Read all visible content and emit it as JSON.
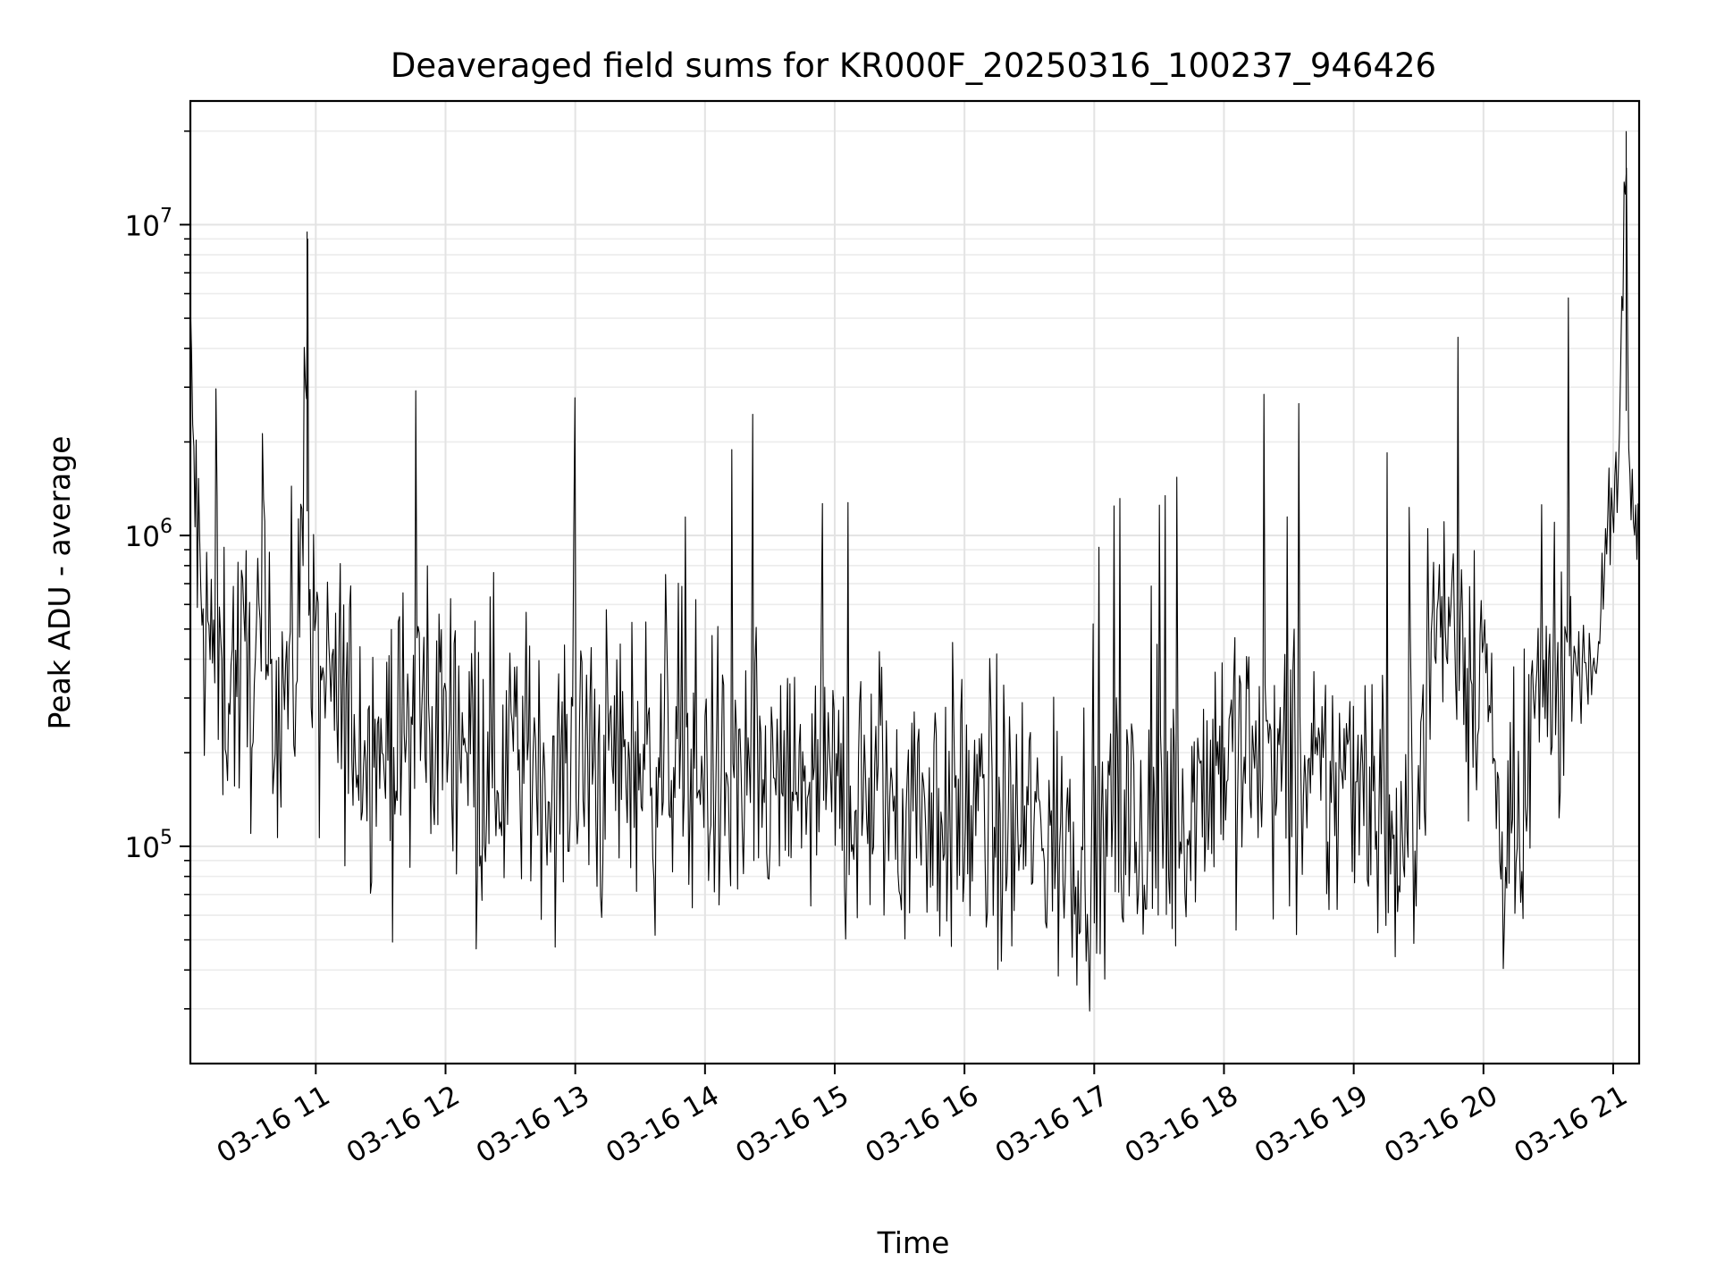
{
  "chart_data": {
    "type": "line",
    "title": "Deaveraged field sums for KR000F_20250316_100237_946426",
    "xlabel": "Time",
    "ylabel": "Peak ADU - average",
    "yscale": "log",
    "ylim": [
      20000,
      25000000
    ],
    "xlim": [
      "2025-03-16 10:02",
      "2025-03-16 21:12"
    ],
    "grid": true,
    "legend": "none",
    "x_tick_labels": [
      "03-16 11",
      "03-16 12",
      "03-16 13",
      "03-16 14",
      "03-16 15",
      "03-16 16",
      "03-16 17",
      "03-16 18",
      "03-16 19",
      "03-16 20",
      "03-16 21"
    ],
    "y_ticks": [
      {
        "base": "10",
        "exp": "5",
        "value": 100000
      },
      {
        "base": "10",
        "exp": "6",
        "value": 1000000
      },
      {
        "base": "10",
        "exp": "7",
        "value": 10000000
      }
    ],
    "line_color": "#000000",
    "series": [
      {
        "x": [
          "2025-03-16 10:02",
          "2025-03-16 10:07",
          "2025-03-16 10:12",
          "2025-03-16 10:17",
          "2025-03-16 10:22",
          "2025-03-16 10:27",
          "2025-03-16 10:32",
          "2025-03-16 10:37",
          "2025-03-16 10:42",
          "2025-03-16 10:47",
          "2025-03-16 10:52",
          "2025-03-16 10:56",
          "2025-03-16 10:57",
          "2025-03-16 11:02",
          "2025-03-16 11:07",
          "2025-03-16 11:12",
          "2025-03-16 11:17",
          "2025-03-16 11:22",
          "2025-03-16 11:27",
          "2025-03-16 11:32",
          "2025-03-16 11:37",
          "2025-03-16 11:42",
          "2025-03-16 11:47",
          "2025-03-16 11:52",
          "2025-03-16 11:57",
          "2025-03-16 12:02",
          "2025-03-16 12:07",
          "2025-03-16 12:12",
          "2025-03-16 12:17",
          "2025-03-16 12:22",
          "2025-03-16 12:27",
          "2025-03-16 12:32",
          "2025-03-16 12:37",
          "2025-03-16 12:42",
          "2025-03-16 12:47",
          "2025-03-16 12:52",
          "2025-03-16 12:57",
          "2025-03-16 13:02",
          "2025-03-16 13:07",
          "2025-03-16 13:12",
          "2025-03-16 13:17",
          "2025-03-16 13:22",
          "2025-03-16 13:27",
          "2025-03-16 13:32",
          "2025-03-16 13:37",
          "2025-03-16 13:42",
          "2025-03-16 13:47",
          "2025-03-16 13:52",
          "2025-03-16 13:57",
          "2025-03-16 14:02",
          "2025-03-16 14:07",
          "2025-03-16 14:12",
          "2025-03-16 14:17",
          "2025-03-16 14:22",
          "2025-03-16 14:27",
          "2025-03-16 14:32",
          "2025-03-16 14:37",
          "2025-03-16 14:42",
          "2025-03-16 14:47",
          "2025-03-16 14:52",
          "2025-03-16 14:57",
          "2025-03-16 15:02",
          "2025-03-16 15:07",
          "2025-03-16 15:12",
          "2025-03-16 15:17",
          "2025-03-16 15:22",
          "2025-03-16 15:27",
          "2025-03-16 15:32",
          "2025-03-16 15:37",
          "2025-03-16 15:42",
          "2025-03-16 15:47",
          "2025-03-16 15:52",
          "2025-03-16 15:57",
          "2025-03-16 16:02",
          "2025-03-16 16:07",
          "2025-03-16 16:12",
          "2025-03-16 16:17",
          "2025-03-16 16:22",
          "2025-03-16 16:27",
          "2025-03-16 16:32",
          "2025-03-16 16:37",
          "2025-03-16 16:42",
          "2025-03-16 16:47",
          "2025-03-16 16:52",
          "2025-03-16 16:57",
          "2025-03-16 17:02",
          "2025-03-16 17:07",
          "2025-03-16 17:12",
          "2025-03-16 17:17",
          "2025-03-16 17:22",
          "2025-03-16 17:27",
          "2025-03-16 17:32",
          "2025-03-16 17:37",
          "2025-03-16 17:42",
          "2025-03-16 17:47",
          "2025-03-16 17:52",
          "2025-03-16 17:57",
          "2025-03-16 18:02",
          "2025-03-16 18:07",
          "2025-03-16 18:12",
          "2025-03-16 18:17",
          "2025-03-16 18:22",
          "2025-03-16 18:27",
          "2025-03-16 18:32",
          "2025-03-16 18:37",
          "2025-03-16 18:42",
          "2025-03-16 18:47",
          "2025-03-16 18:52",
          "2025-03-16 18:57",
          "2025-03-16 19:02",
          "2025-03-16 19:07",
          "2025-03-16 19:12",
          "2025-03-16 19:17",
          "2025-03-16 19:22",
          "2025-03-16 19:27",
          "2025-03-16 19:32",
          "2025-03-16 19:37",
          "2025-03-16 19:42",
          "2025-03-16 19:47",
          "2025-03-16 19:52",
          "2025-03-16 19:57",
          "2025-03-16 20:02",
          "2025-03-16 20:07",
          "2025-03-16 20:12",
          "2025-03-16 20:17",
          "2025-03-16 20:22",
          "2025-03-16 20:27",
          "2025-03-16 20:32",
          "2025-03-16 20:37",
          "2025-03-16 20:42",
          "2025-03-16 20:47",
          "2025-03-16 20:52",
          "2025-03-16 20:57",
          "2025-03-16 21:02",
          "2025-03-16 21:06",
          "2025-03-16 21:07",
          "2025-03-16 21:12"
        ],
        "y": [
          3200000,
          500000,
          420000,
          350000,
          380000,
          330000,
          400000,
          360000,
          340000,
          370000,
          420000,
          9500000,
          380000,
          320000,
          300000,
          280000,
          260000,
          250000,
          230000,
          210000,
          200000,
          230000,
          300000,
          250000,
          260000,
          240000,
          280000,
          230000,
          220000,
          200000,
          190000,
          210000,
          180000,
          190000,
          170000,
          160000,
          180000,
          170000,
          190000,
          160000,
          210000,
          180000,
          200000,
          190000,
          180000,
          210000,
          230000,
          200000,
          180000,
          170000,
          160000,
          150000,
          140000,
          160000,
          150000,
          140000,
          145000,
          150000,
          160000,
          150000,
          140000,
          150000,
          145000,
          140000,
          155000,
          150000,
          140000,
          130000,
          145000,
          140000,
          135000,
          130000,
          125000,
          130000,
          120000,
          125000,
          115000,
          110000,
          120000,
          110000,
          115000,
          100000,
          105000,
          110000,
          110000,
          100000,
          105000,
          115000,
          110000,
          100000,
          105000,
          110000,
          120000,
          140000,
          160000,
          180000,
          200000,
          200000,
          210000,
          190000,
          200000,
          180000,
          170000,
          160000,
          150000,
          140000,
          150000,
          160000,
          170000,
          200000,
          180000,
          140000,
          100000,
          90000,
          120000,
          300000,
          500000,
          550000,
          500000,
          450000,
          400000,
          350000,
          120000,
          90000,
          80000,
          220000,
          300000,
          350000,
          400000,
          420000,
          380000,
          400000,
          1000000,
          1300000,
          20000000,
          1500000,
          1100000
        ]
      }
    ]
  }
}
